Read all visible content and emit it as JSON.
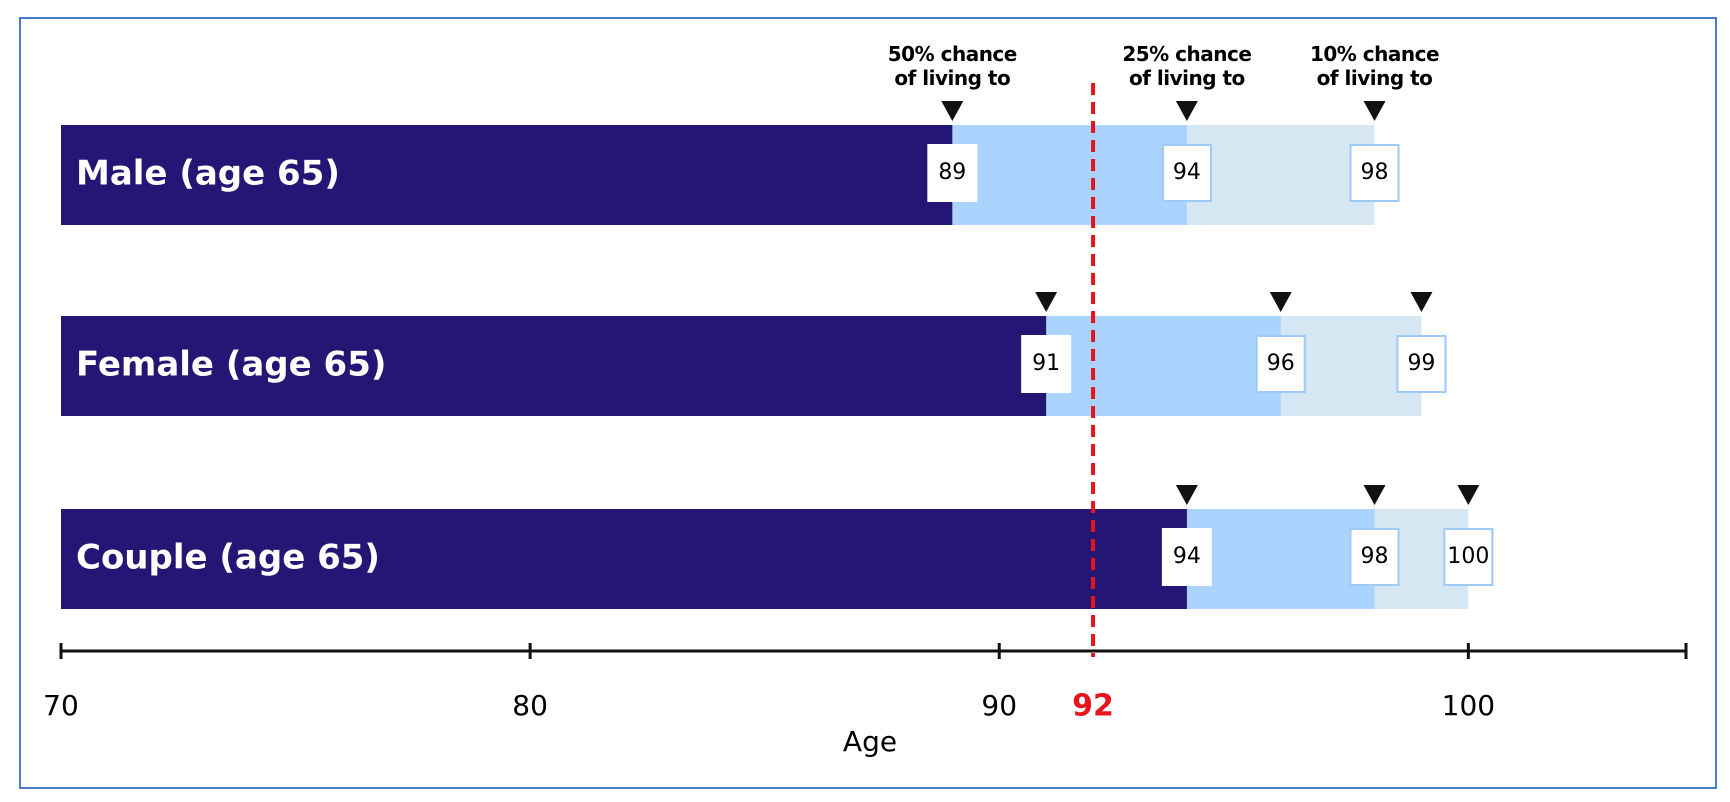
{
  "chart_data": {
    "type": "range-bar",
    "categories": [
      "Male (age 65)",
      "Female (age 65)",
      "Couple (age 65)"
    ],
    "series": [
      {
        "name": "50% chance of living to",
        "color": "#241675",
        "values": [
          89,
          91,
          94
        ]
      },
      {
        "name": "25% chance of living to",
        "color": "#aad3fd",
        "values": [
          94,
          96,
          98
        ]
      },
      {
        "name": "10% chance of living to",
        "color": "#d6e7f4",
        "values": [
          98,
          99,
          100
        ]
      }
    ],
    "xlabel": "Age",
    "xlim": [
      70,
      104
    ],
    "xticks": [
      70,
      80,
      90,
      100
    ],
    "reference_line": {
      "value": 92,
      "color": "#e8141b"
    }
  }
}
